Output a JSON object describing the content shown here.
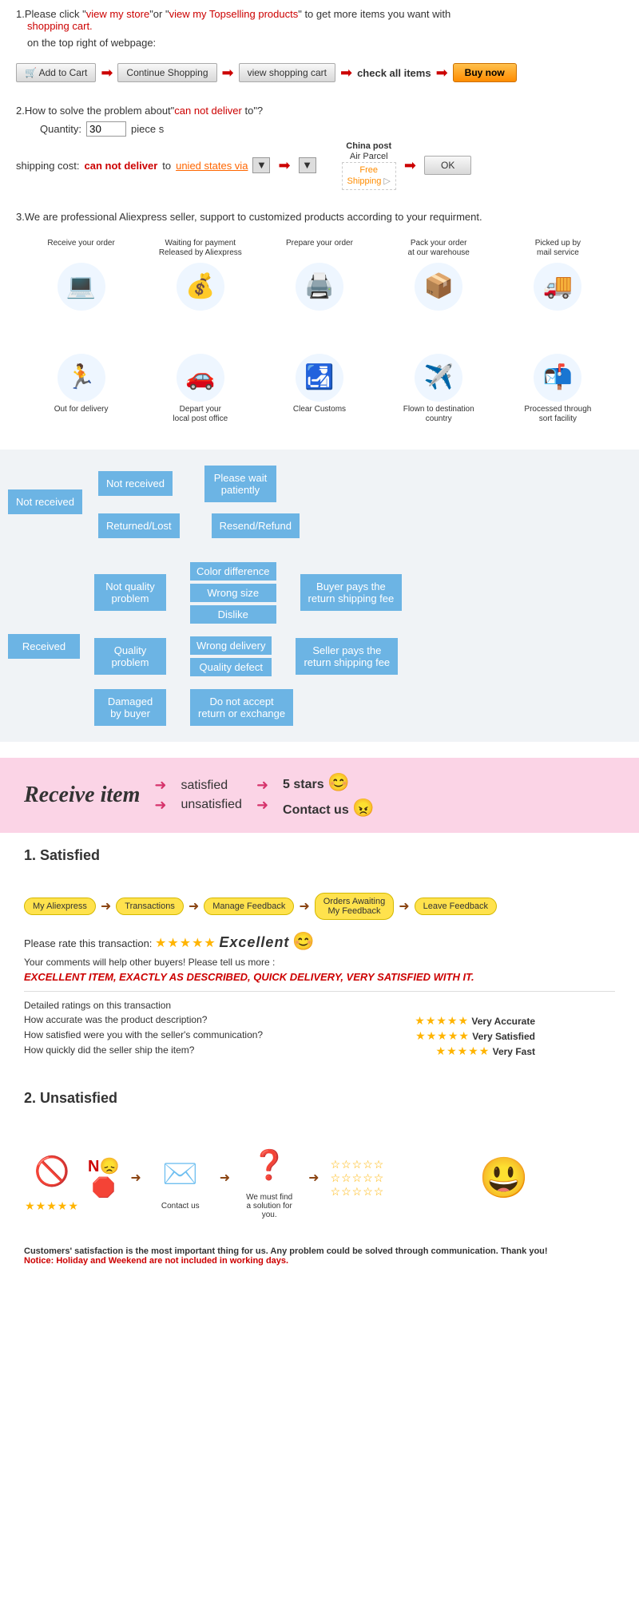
{
  "intro": {
    "step1_prefix": "1.Please click \"",
    "link1": "view my store",
    "mid": "\"or \"",
    "link2": "view my Topselling products",
    "suffix": "\" to get more items you want with",
    "line2": "shopping cart.",
    "line3": "on the top right of webpage:"
  },
  "buttons": {
    "add_cart": "🛒 Add to Cart",
    "continue": "Continue Shopping",
    "view_cart": "view shopping cart",
    "check_all": "check all items",
    "buy_now": "Buy now"
  },
  "step2": {
    "q_prefix": "2.How to solve the problem about\"",
    "cannot": "can not deliver",
    "q_suffix": " to\"?",
    "qty_label": "Quantity:",
    "qty_val": "30",
    "pieces": "piece s",
    "ship_label": "shipping cost:",
    "to": " to ",
    "via": "unied states via",
    "china_post": "China post",
    "air_parcel": "Air Parcel",
    "free": "Free",
    "shipping": "Shipping",
    "ok": "OK"
  },
  "step3": "3.We are professional Aliexpress seller, support to customized products according to your requirment.",
  "process_top": [
    "Receive your order",
    "Waiting for payment\nReleased by Aliexpress",
    "Prepare your order",
    "Pack your order\nat our warehouse",
    "Picked up by\nmail service"
  ],
  "process_bot": [
    "Out for delivery",
    "Depart your\nlocal post office",
    "Clear Customs",
    "Flown to destination\ncountry",
    "Processed through\nsort facility"
  ],
  "process_icons_top": [
    "💻",
    "💰",
    "🖨️",
    "📦",
    "🚚"
  ],
  "process_icons_bot": [
    "🏃",
    "🚗",
    "🛃",
    "✈️",
    "📬"
  ],
  "process_colors": [
    "#4a90d9",
    "#2e8b57",
    "#444",
    "#2e5aac",
    "#2e5aac"
  ],
  "tree": {
    "not_received": "Not received",
    "nr_branch1": "Not received",
    "nr_branch2": "Returned/Lost",
    "nr_leaf1": "Please wait\npatiently",
    "nr_leaf2": "Resend/Refund",
    "received": "Received",
    "r_b1": "Not quality\nproblem",
    "r_b2": "Quality\nproblem",
    "r_b3": "Damaged\nby buyer",
    "r_b1_l1": "Color difference",
    "r_b1_l2": "Wrong size",
    "r_b1_l3": "Dislike",
    "r_b2_l1": "Wrong delivery",
    "r_b2_l2": "Quality defect",
    "r_b3_l1": "Do not accept\nreturn or exchange",
    "out1": "Buyer pays the\nreturn shipping fee",
    "out2": "Seller pays the\nreturn shipping fee",
    "box_color": "#6cb4e4"
  },
  "pink": {
    "title": "Receive item",
    "satisfied": "satisfied",
    "unsatisfied": "unsatisfied",
    "five_stars": "5 stars",
    "contact": "Contact us"
  },
  "satisfied": {
    "title": "1. Satisfied",
    "pills": [
      "My Aliexpress",
      "Transactions",
      "Manage Feedback",
      "Orders Awaiting\nMy Feedback",
      "Leave Feedback"
    ],
    "rate_label": "Please rate this transaction:",
    "excellent": "Excellent",
    "comments": "Your comments will help other buyers! Please tell us more :",
    "review": "EXCELLENT ITEM, EXACTLY AS DESCRIBED, QUICK DELIVERY, VERY SATISFIED WITH IT.",
    "detail_hdr": "Detailed ratings on this transaction",
    "q1": "How accurate was the product description?",
    "q2": "How satisfied were you with the seller's communication?",
    "q3": "How quickly did the seller ship the item?",
    "a1": "Very Accurate",
    "a2": "Very Satisfied",
    "a3": "Very Fast"
  },
  "unsatisfied": {
    "title": "2. Unsatisfied",
    "no": "N😞",
    "contact": "Contact us",
    "find": "We must find\na solution for\nyou."
  },
  "footer": {
    "l1": "Customers' satisfaction is the most important thing for us. Any problem could be solved through communication. Thank you!",
    "l2": "Notice: Holiday and Weekend are not included in working days."
  }
}
